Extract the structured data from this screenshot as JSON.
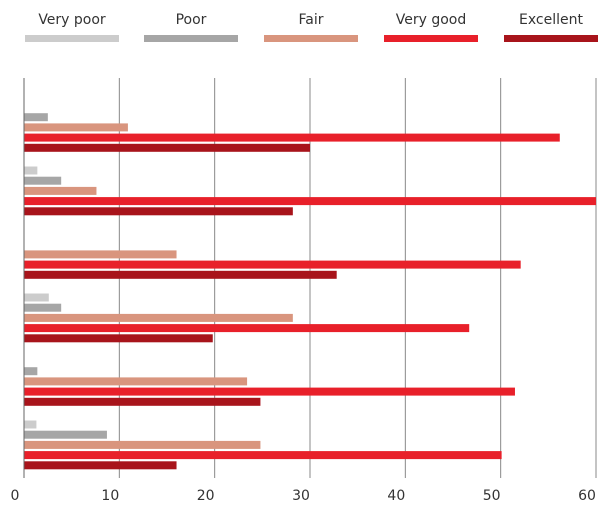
{
  "chart_data": {
    "type": "bar",
    "orientation": "horizontal",
    "title": "",
    "xlabel": "",
    "ylabel": "",
    "xlim": [
      0,
      60
    ],
    "x_ticks": [
      "0",
      "10",
      "20",
      "30",
      "40",
      "50",
      "60"
    ],
    "grid": "vertical",
    "legend_position": "top",
    "categories": [
      "",
      "",
      "",
      "",
      "",
      ""
    ],
    "series": [
      {
        "name": "Very poor",
        "color": "#cccccc",
        "values": [
          0,
          1.4,
          0,
          2.6,
          0,
          1.3
        ]
      },
      {
        "name": "Poor",
        "color": "#a6a6a6",
        "values": [
          2.5,
          3.9,
          0,
          3.9,
          1.4,
          8.7
        ]
      },
      {
        "name": "Fair",
        "color": "#d9957e",
        "values": [
          10.9,
          7.6,
          16,
          28.2,
          23.4,
          24.8
        ]
      },
      {
        "name": "Very good",
        "color": "#e8202a",
        "values": [
          56.2,
          60,
          52.1,
          46.7,
          51.5,
          50.1
        ]
      },
      {
        "name": "Excellent",
        "color": "#a8141b",
        "values": [
          30,
          28.2,
          32.8,
          19.8,
          24.8,
          16
        ]
      }
    ]
  }
}
